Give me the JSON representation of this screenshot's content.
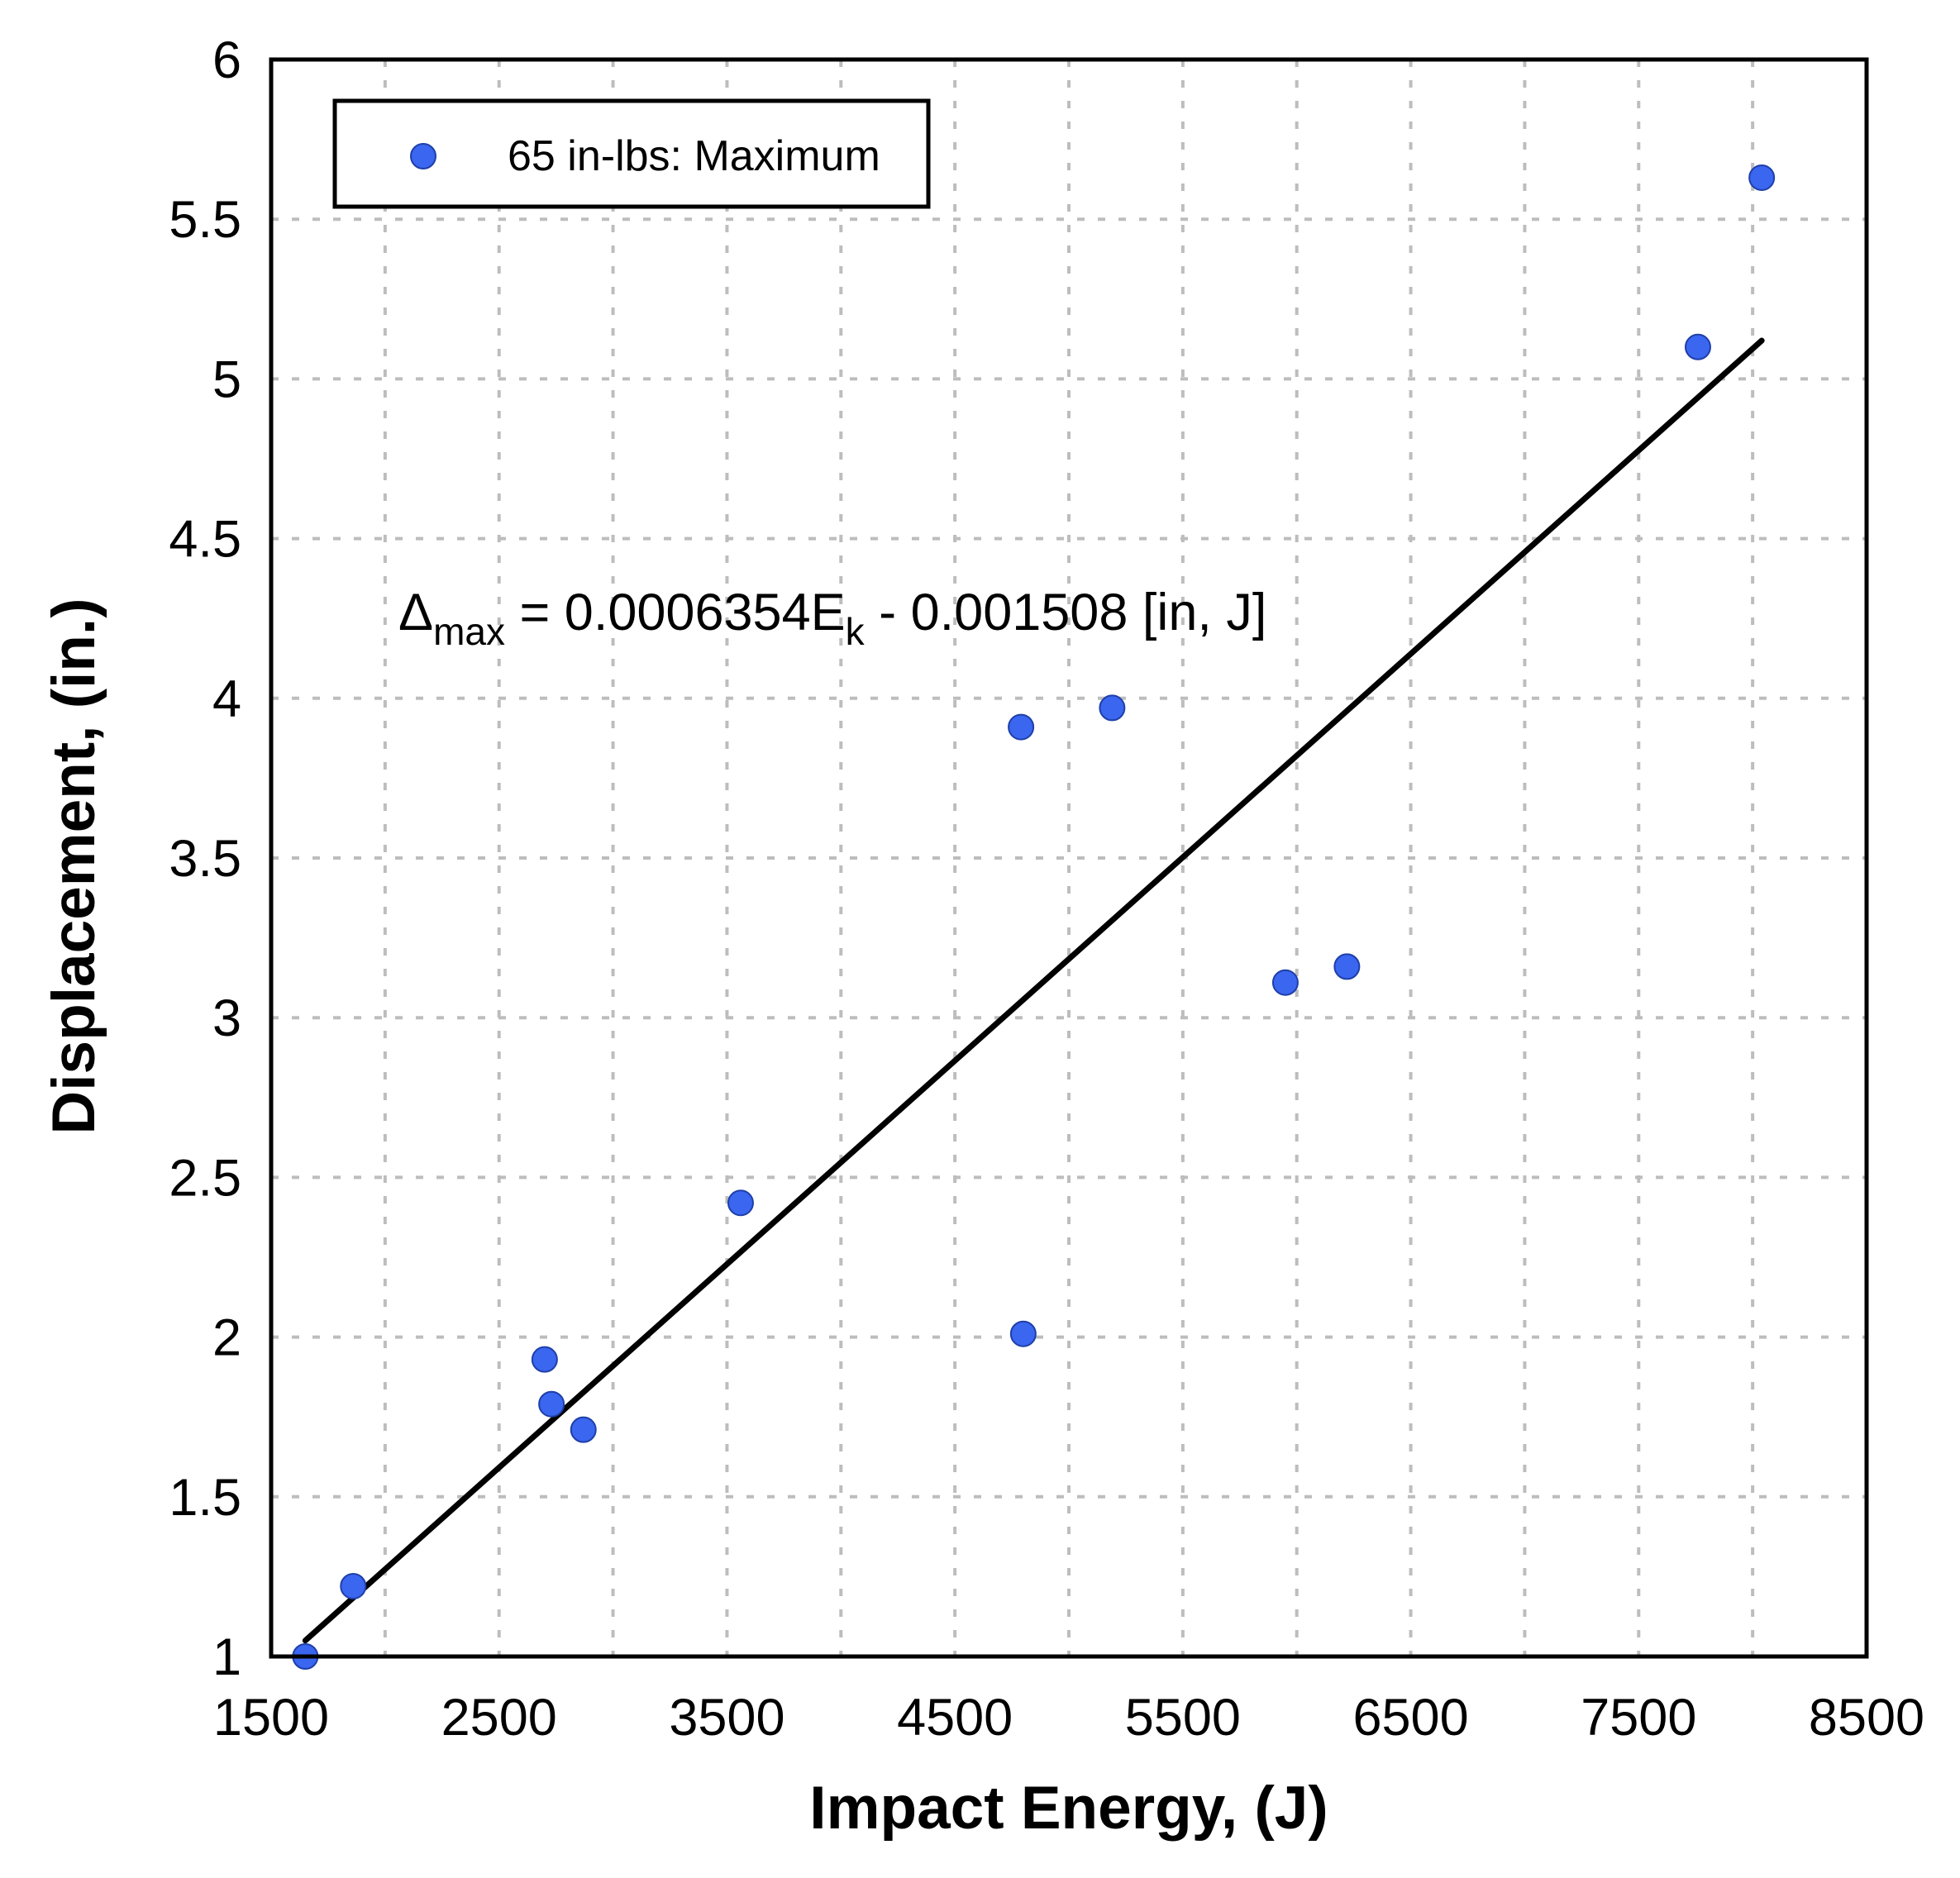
{
  "chart_data": {
    "type": "scatter",
    "title": "",
    "xlabel": "Impact Energy, (J)",
    "ylabel": "Displacement, (in.)",
    "xlim": [
      1500,
      8500
    ],
    "ylim": [
      1,
      6
    ],
    "x_ticks": [
      "1500",
      "2500",
      "3500",
      "4500",
      "5500",
      "6500",
      "7500",
      "8500"
    ],
    "y_ticks": [
      "1",
      "1.5",
      "2",
      "2.5",
      "3",
      "3.5",
      "4",
      "4.5",
      "5",
      "5.5",
      "6"
    ],
    "x_tick_values": [
      1500,
      2500,
      3500,
      4500,
      5500,
      6500,
      7500,
      8500
    ],
    "y_tick_values": [
      1,
      1.5,
      2,
      2.5,
      3,
      3.5,
      4,
      4.5,
      5,
      5.5,
      6
    ],
    "x_grid_values": [
      1500,
      2000,
      2500,
      3000,
      3500,
      4000,
      4500,
      5000,
      5500,
      6000,
      6500,
      7000,
      7500,
      8000,
      8500
    ],
    "y_grid_values": [
      1,
      1.5,
      2,
      2.5,
      3,
      3.5,
      4,
      4.5,
      5,
      5.5,
      6
    ],
    "grid": true,
    "legend_position": "top-left",
    "series": [
      {
        "name": "65 in-lbs: Maximum",
        "color": "#3a66f0",
        "x": [
          1650,
          1860,
          2700,
          2730,
          2870,
          3560,
          4790,
          4800,
          5190,
          5950,
          6220,
          7760,
          8040
        ],
        "y": [
          1.0,
          1.22,
          1.93,
          1.79,
          1.71,
          2.42,
          3.91,
          2.01,
          3.97,
          3.11,
          3.16,
          5.1,
          5.63
        ]
      }
    ],
    "trendline": {
      "x": [
        1650,
        8040
      ],
      "y": [
        1.05,
        5.12
      ],
      "color": "#000000"
    },
    "annotation": {
      "delta": "Δ",
      "sub1": "max",
      "mid": " = 0.0006354E",
      "sub2": "k",
      "tail": " - 0.001508 [in, J]"
    }
  }
}
